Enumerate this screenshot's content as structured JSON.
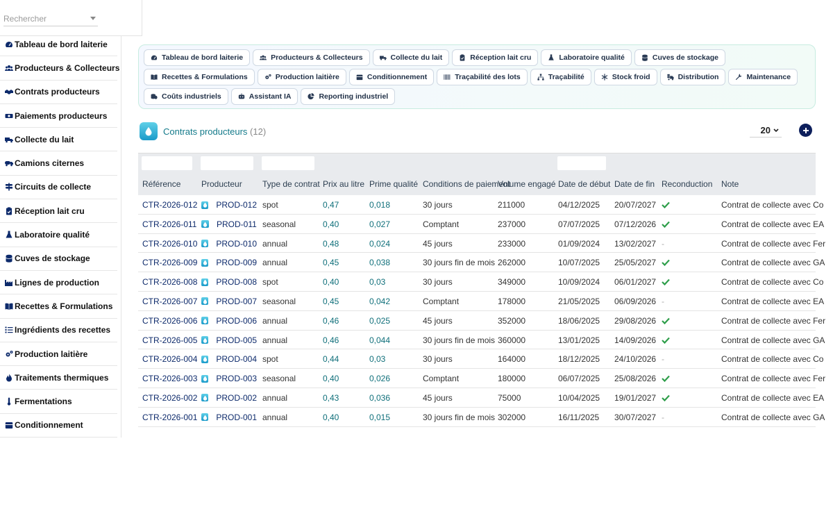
{
  "search": {
    "placeholder": "Rechercher"
  },
  "sidebar": {
    "items": [
      {
        "label": "Tableau de bord laiterie",
        "icon": "dashboard-icon"
      },
      {
        "label": "Producteurs & Collecteurs",
        "icon": "users-icon"
      },
      {
        "label": "Contrats producteurs",
        "icon": "handshake-icon"
      },
      {
        "label": "Paiements producteurs",
        "icon": "money-icon"
      },
      {
        "label": "Collecte du lait",
        "icon": "truck-icon"
      },
      {
        "label": "Camions citernes",
        "icon": "tanker-icon"
      },
      {
        "label": "Circuits de collecte",
        "icon": "signpost-icon"
      },
      {
        "label": "Réception lait cru",
        "icon": "clipboard-icon"
      },
      {
        "label": "Laboratoire qualité",
        "icon": "flask-icon"
      },
      {
        "label": "Cuves de stockage",
        "icon": "database-icon"
      },
      {
        "label": "Lignes de production",
        "icon": "industry-icon"
      },
      {
        "label": "Recettes & Formulations",
        "icon": "book-icon"
      },
      {
        "label": "Ingrédients des recettes",
        "icon": "list-icon"
      },
      {
        "label": "Production laitière",
        "icon": "cogs-icon"
      },
      {
        "label": "Traitements thermiques",
        "icon": "flame-icon"
      },
      {
        "label": "Fermentations",
        "icon": "thermometer-icon"
      },
      {
        "label": "Conditionnement",
        "icon": "box-icon"
      }
    ]
  },
  "shortcuts": [
    {
      "label": "Tableau de bord laiterie",
      "icon": "dashboard-icon"
    },
    {
      "label": "Producteurs & Collecteurs",
      "icon": "users-icon"
    },
    {
      "label": "Collecte du lait",
      "icon": "truck-icon"
    },
    {
      "label": "Réception lait cru",
      "icon": "clipboard-icon"
    },
    {
      "label": "Laboratoire qualité",
      "icon": "flask-icon"
    },
    {
      "label": "Cuves de stockage",
      "icon": "database-icon"
    },
    {
      "label": "Recettes & Formulations",
      "icon": "book-icon"
    },
    {
      "label": "Production laitière",
      "icon": "cogs-icon"
    },
    {
      "label": "Conditionnement",
      "icon": "box-icon"
    },
    {
      "label": "Traçabilité des lots",
      "icon": "barcode-icon"
    },
    {
      "label": "Traçabilité",
      "icon": "sitemap-icon"
    },
    {
      "label": "Stock froid",
      "icon": "snowflake-icon"
    },
    {
      "label": "Distribution",
      "icon": "shipping-icon"
    },
    {
      "label": "Maintenance",
      "icon": "wrench-icon"
    },
    {
      "label": "Coûts industriels",
      "icon": "coins-icon"
    },
    {
      "label": "Assistant IA",
      "icon": "robot-icon"
    },
    {
      "label": "Reporting industriel",
      "icon": "chart-pie-icon"
    }
  ],
  "header": {
    "title": "Contrats producteurs",
    "count": "(12)",
    "page_size": "20"
  },
  "table": {
    "columns": [
      "Référence",
      "Producteur",
      "Type de contrat",
      "Prix au litre",
      "Prime qualité",
      "Conditions de paiement",
      "Volume engagé",
      "Date de début",
      "Date de fin",
      "Reconduction",
      "Note"
    ],
    "rows": [
      {
        "ref": "CTR-2026-012",
        "prod": "PROD-012",
        "type": "spot",
        "prix": "0,47",
        "prime": "0,018",
        "cond": "30 jours",
        "vol": "211000",
        "debut": "04/12/2025",
        "fin": "20/07/2027",
        "recond": true,
        "note": "Contrat de collecte avec Co"
      },
      {
        "ref": "CTR-2026-011",
        "prod": "PROD-011",
        "type": "seasonal",
        "prix": "0,40",
        "prime": "0,027",
        "cond": "Comptant",
        "vol": "237000",
        "debut": "07/07/2025",
        "fin": "07/12/2026",
        "recond": true,
        "note": "Contrat de collecte avec EA"
      },
      {
        "ref": "CTR-2026-010",
        "prod": "PROD-010",
        "type": "annual",
        "prix": "0,48",
        "prime": "0,024",
        "cond": "45 jours",
        "vol": "233000",
        "debut": "01/09/2024",
        "fin": "13/02/2027",
        "recond": false,
        "note": "Contrat de collecte avec Fer"
      },
      {
        "ref": "CTR-2026-009",
        "prod": "PROD-009",
        "type": "annual",
        "prix": "0,45",
        "prime": "0,038",
        "cond": "30 jours fin de mois",
        "vol": "262000",
        "debut": "10/07/2025",
        "fin": "25/05/2027",
        "recond": true,
        "note": "Contrat de collecte avec GA"
      },
      {
        "ref": "CTR-2026-008",
        "prod": "PROD-008",
        "type": "spot",
        "prix": "0,40",
        "prime": "0,03",
        "cond": "30 jours",
        "vol": "349000",
        "debut": "10/09/2024",
        "fin": "06/01/2027",
        "recond": true,
        "note": "Contrat de collecte avec Co"
      },
      {
        "ref": "CTR-2026-007",
        "prod": "PROD-007",
        "type": "seasonal",
        "prix": "0,45",
        "prime": "0,042",
        "cond": "Comptant",
        "vol": "178000",
        "debut": "21/05/2025",
        "fin": "06/09/2026",
        "recond": false,
        "note": "Contrat de collecte avec EA"
      },
      {
        "ref": "CTR-2026-006",
        "prod": "PROD-006",
        "type": "annual",
        "prix": "0,46",
        "prime": "0,025",
        "cond": "45 jours",
        "vol": "352000",
        "debut": "18/06/2025",
        "fin": "29/08/2026",
        "recond": true,
        "note": "Contrat de collecte avec Fer"
      },
      {
        "ref": "CTR-2026-005",
        "prod": "PROD-005",
        "type": "annual",
        "prix": "0,46",
        "prime": "0,044",
        "cond": "30 jours fin de mois",
        "vol": "360000",
        "debut": "13/01/2025",
        "fin": "14/09/2026",
        "recond": true,
        "note": "Contrat de collecte avec GA"
      },
      {
        "ref": "CTR-2026-004",
        "prod": "PROD-004",
        "type": "spot",
        "prix": "0,44",
        "prime": "0,03",
        "cond": "30 jours",
        "vol": "164000",
        "debut": "18/12/2025",
        "fin": "24/10/2026",
        "recond": false,
        "note": "Contrat de collecte avec Co"
      },
      {
        "ref": "CTR-2026-003",
        "prod": "PROD-003",
        "type": "seasonal",
        "prix": "0,40",
        "prime": "0,026",
        "cond": "Comptant",
        "vol": "180000",
        "debut": "06/07/2025",
        "fin": "25/08/2026",
        "recond": true,
        "note": "Contrat de collecte avec Fer"
      },
      {
        "ref": "CTR-2026-002",
        "prod": "PROD-002",
        "type": "annual",
        "prix": "0,43",
        "prime": "0,036",
        "cond": "45 jours",
        "vol": "75000",
        "debut": "10/04/2025",
        "fin": "19/01/2027",
        "recond": true,
        "note": "Contrat de collecte avec EA"
      },
      {
        "ref": "CTR-2026-001",
        "prod": "PROD-001",
        "type": "annual",
        "prix": "0,40",
        "prime": "0,015",
        "cond": "30 jours fin de mois",
        "vol": "302000",
        "debut": "16/11/2025",
        "fin": "30/07/2027",
        "recond": false,
        "note": "Contrat de collecte avec GA"
      }
    ],
    "dash": "-"
  },
  "colors": {
    "accent": "#0d1f5c",
    "check": "#2e9e4a",
    "teal": "#137a8a"
  }
}
